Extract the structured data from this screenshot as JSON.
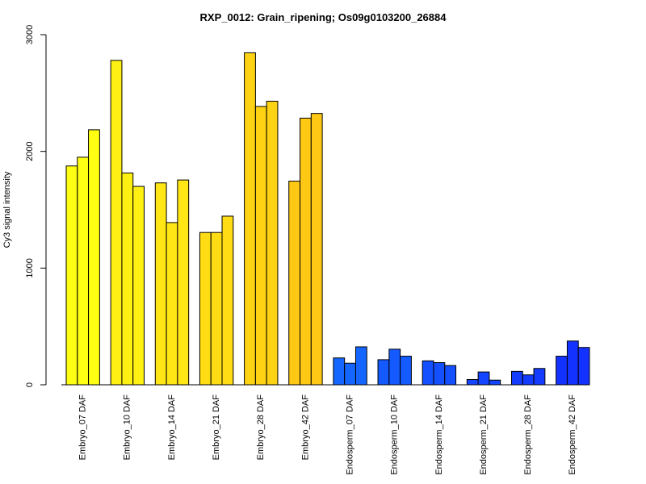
{
  "chart_data": {
    "type": "bar",
    "title": "RXP_0012: Grain_ripening; Os09g0103200_26884",
    "xlabel": "",
    "ylabel": "Cy3 signal intensity",
    "ylim": [
      0,
      3000
    ],
    "yticks": [
      "0",
      "1000",
      "2000",
      "3000"
    ],
    "grid": false,
    "bars_per_group": 3,
    "categories": [
      "Embryo_07 DAF",
      "Embryo_10 DAF",
      "Embryo_14 DAF",
      "Embryo_21 DAF",
      "Embryo_28 DAF",
      "Embryo_42 DAF",
      "Endosperm_07 DAF",
      "Endosperm_10 DAF",
      "Endosperm_14 DAF",
      "Endosperm_21 DAF",
      "Endosperm_28 DAF",
      "Endosperm_42 DAF"
    ],
    "values": [
      [
        1875,
        1950,
        2185
      ],
      [
        2780,
        1815,
        1700
      ],
      [
        1730,
        1390,
        1755
      ],
      [
        1305,
        1305,
        1445
      ],
      [
        2845,
        2385,
        2430
      ],
      [
        1745,
        2285,
        2325
      ],
      [
        230,
        185,
        325
      ],
      [
        215,
        305,
        245
      ],
      [
        205,
        190,
        165
      ],
      [
        45,
        110,
        40
      ],
      [
        115,
        85,
        140
      ],
      [
        245,
        375,
        320
      ]
    ],
    "group_colors": [
      "#FFFF14",
      "#FFF014",
      "#FFE614",
      "#FFDC14",
      "#FFD214",
      "#FFC814",
      "#1466FF",
      "#145AFF",
      "#1450FF",
      "#1446FF",
      "#143CFF",
      "#1432FF"
    ]
  }
}
